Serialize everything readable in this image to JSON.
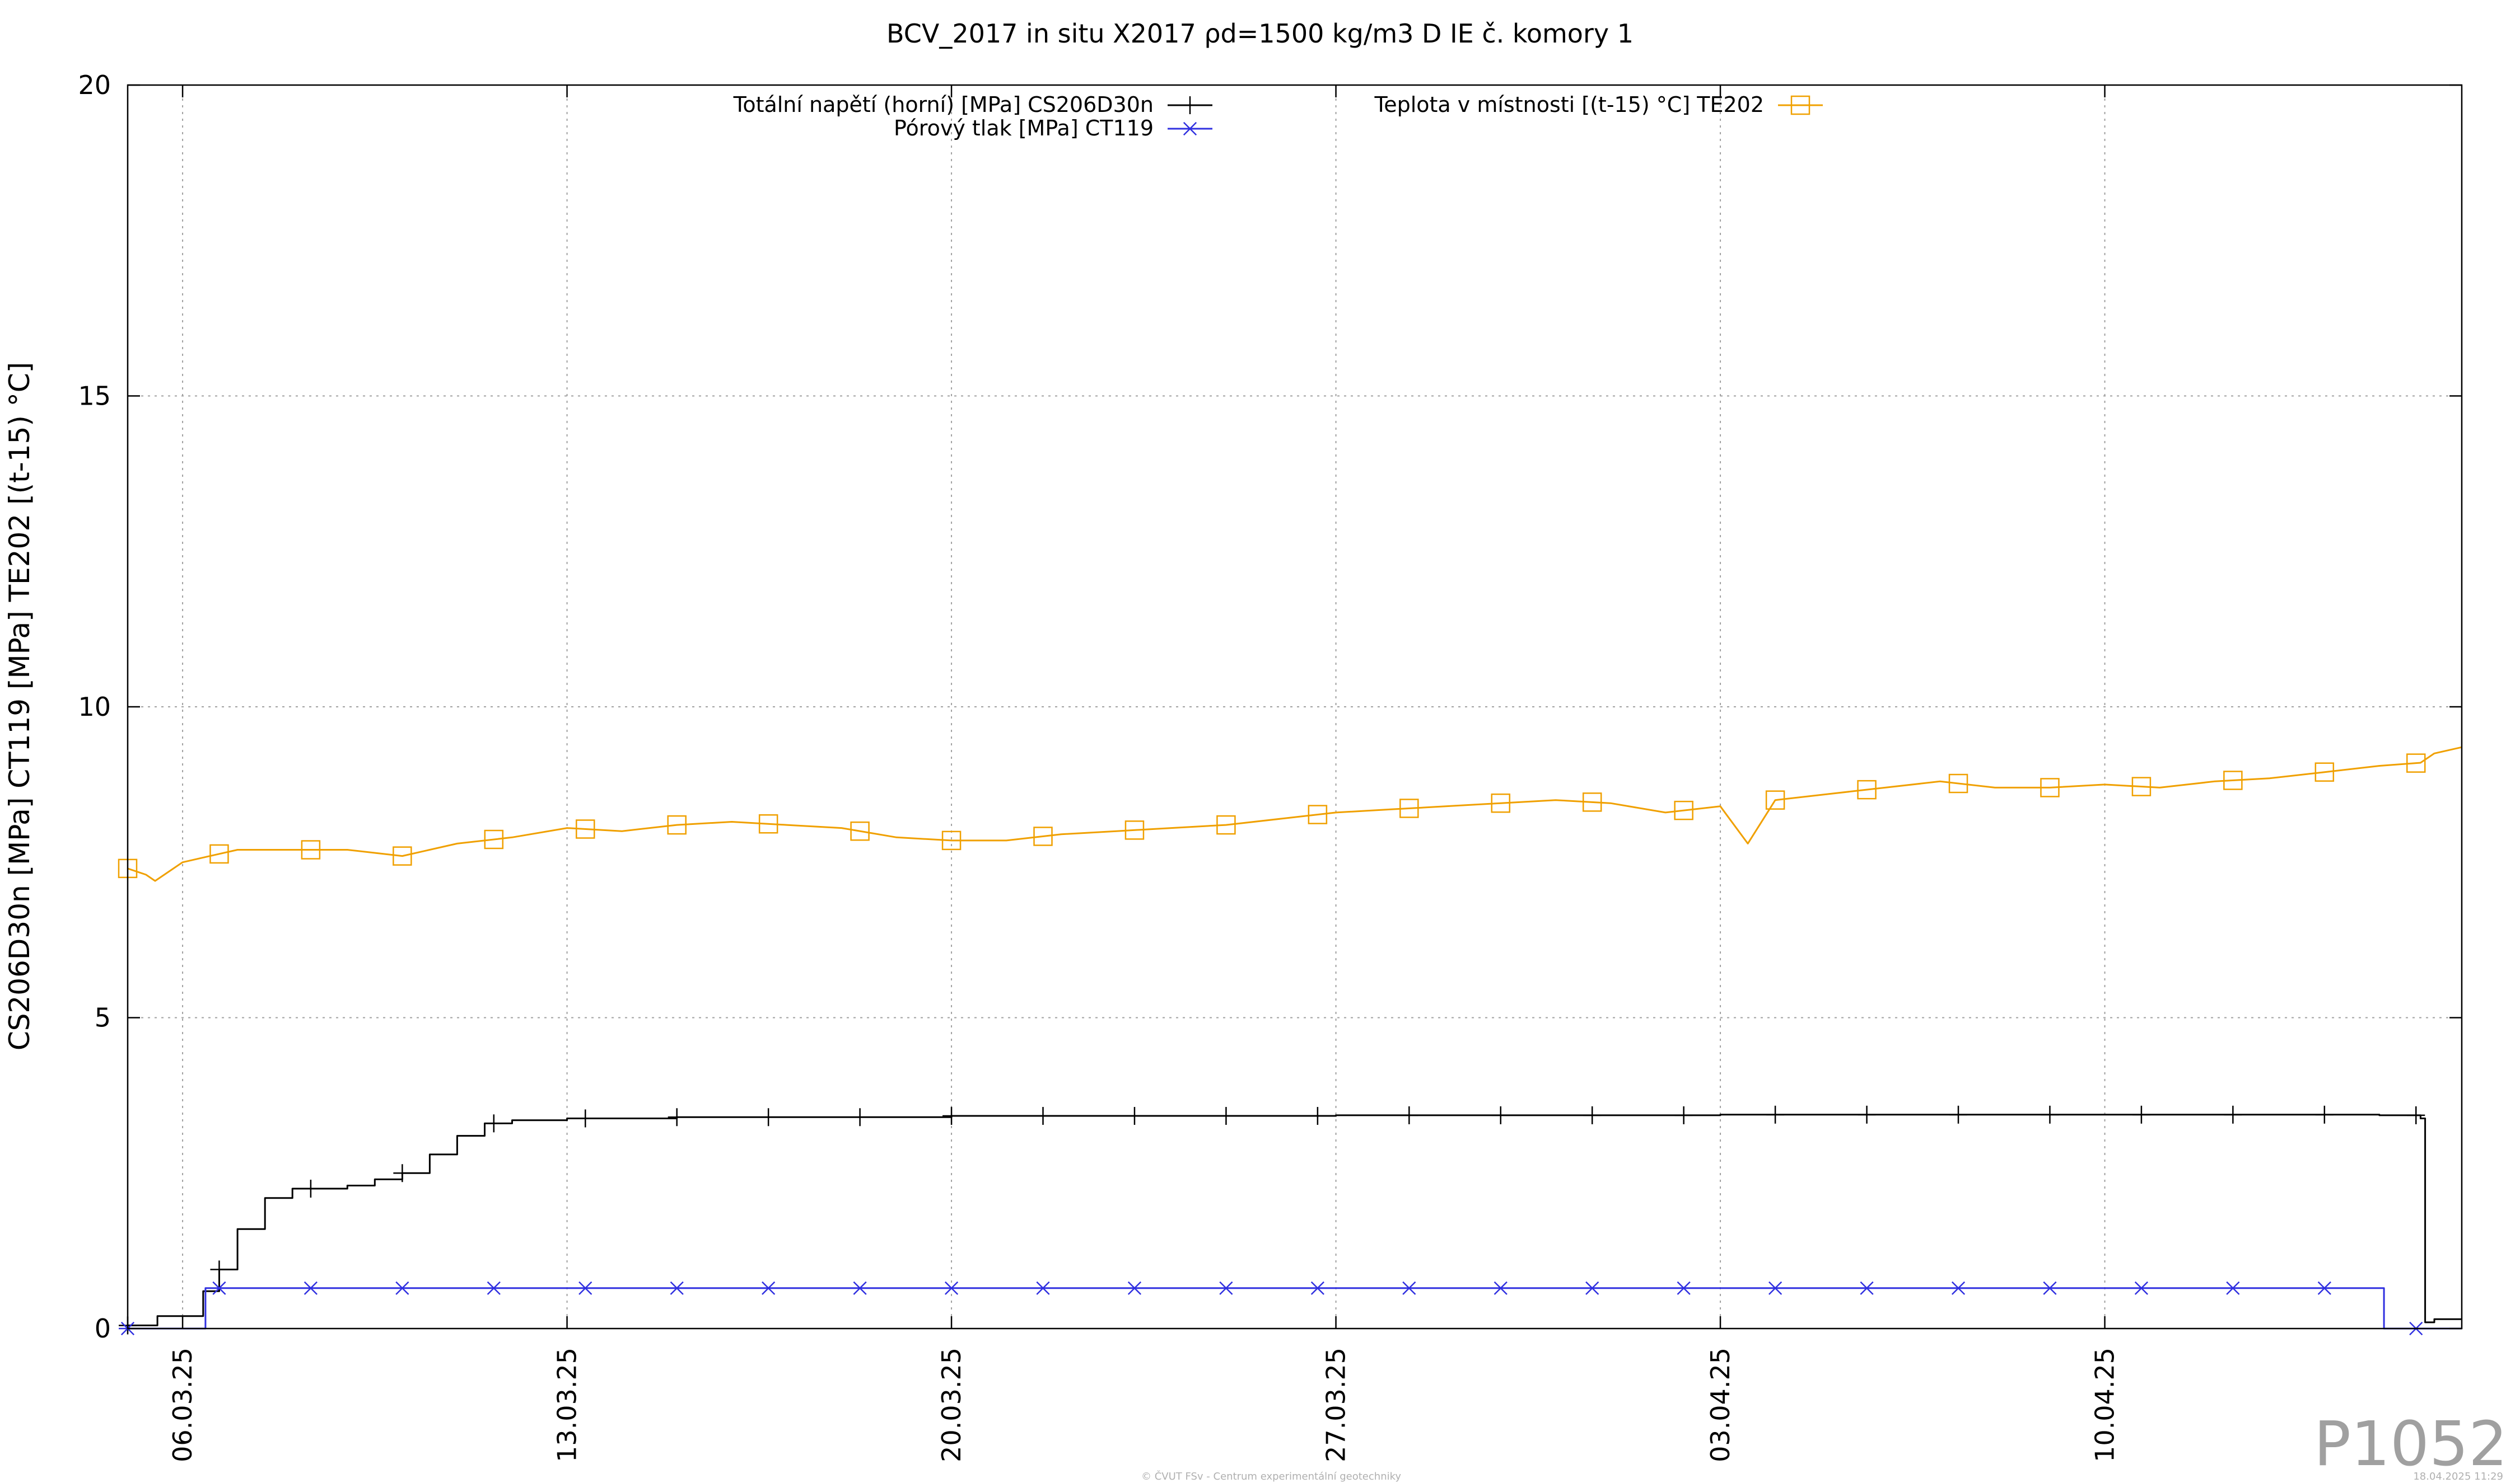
{
  "chart_data": {
    "type": "line",
    "title": "BCV_2017 in situ X2017 ρd=1500 kg/m3 D IE č. komory 1",
    "ylabel": "CS206D30n [MPa] CT119 [MPa] TE202 [(t-15) °C]",
    "xlabel": "",
    "ylim": [
      0,
      20
    ],
    "y_ticks": [
      "0",
      "5",
      "10",
      "15",
      "20"
    ],
    "x_range": [
      "2025-03-05 00:00",
      "2025-04-16 12:00"
    ],
    "x_ticks": [
      {
        "label": "06.03.25",
        "date": "2025-03-06"
      },
      {
        "label": "13.03.25",
        "date": "2025-03-13"
      },
      {
        "label": "20.03.25",
        "date": "2025-03-20"
      },
      {
        "label": "27.03.25",
        "date": "2025-03-27"
      },
      {
        "label": "03.04.25",
        "date": "2025-04-03"
      },
      {
        "label": "10.04.25",
        "date": "2025-04-10"
      }
    ],
    "grid": true,
    "legend_position": "top",
    "series": [
      {
        "name": "Totální napětí (horní) [MPa] CS206D30n",
        "color": "#000000",
        "marker": "plus",
        "step": true,
        "x": [
          "2025-03-05 00:00",
          "2025-03-05 12:00",
          "2025-03-05 13:00",
          "2025-03-06 08:00",
          "2025-03-06 09:00",
          "2025-03-06 16:00",
          "2025-03-07 00:00",
          "2025-03-07 12:00",
          "2025-03-08 00:00",
          "2025-03-08 12:00",
          "2025-03-09 00:00",
          "2025-03-09 12:00",
          "2025-03-10 00:00",
          "2025-03-10 12:00",
          "2025-03-11 00:00",
          "2025-03-11 12:00",
          "2025-03-12 00:00",
          "2025-03-13 00:00",
          "2025-03-15 00:00",
          "2025-03-20 00:00",
          "2025-03-27 00:00",
          "2025-04-03 00:00",
          "2025-04-10 00:00",
          "2025-04-15 00:00",
          "2025-04-15 18:00",
          "2025-04-15 20:00",
          "2025-04-16 00:00",
          "2025-04-16 12:00"
        ],
        "y": [
          0.05,
          0.05,
          0.2,
          0.2,
          0.6,
          0.95,
          1.6,
          2.1,
          2.25,
          2.25,
          2.3,
          2.4,
          2.5,
          2.8,
          3.1,
          3.3,
          3.35,
          3.38,
          3.4,
          3.42,
          3.43,
          3.44,
          3.44,
          3.43,
          3.38,
          0.1,
          0.15,
          0.15
        ]
      },
      {
        "name": "Pórový tlak [MPa] CT119",
        "color": "#3030e0",
        "marker": "asterisk",
        "step": true,
        "x": [
          "2025-03-05 00:00",
          "2025-03-06 09:00",
          "2025-03-06 10:00",
          "2025-04-15 01:00",
          "2025-04-15 02:00",
          "2025-04-16 12:00"
        ],
        "y": [
          0.0,
          0.0,
          0.65,
          0.65,
          0.0,
          0.0
        ]
      },
      {
        "name": "Teplota v místnosti [(t-15) °C] TE202",
        "color": "#f0a000",
        "marker": "square",
        "step": false,
        "x": [
          "2025-03-05 00:00",
          "2025-03-05 08:00",
          "2025-03-05 12:00",
          "2025-03-06 00:00",
          "2025-03-06 12:00",
          "2025-03-07 00:00",
          "2025-03-08 00:00",
          "2025-03-09 00:00",
          "2025-03-10 00:00",
          "2025-03-11 00:00",
          "2025-03-12 00:00",
          "2025-03-13 00:00",
          "2025-03-14 00:00",
          "2025-03-15 00:00",
          "2025-03-16 00:00",
          "2025-03-17 00:00",
          "2025-03-18 00:00",
          "2025-03-19 00:00",
          "2025-03-20 00:00",
          "2025-03-21 00:00",
          "2025-03-22 00:00",
          "2025-03-23 00:00",
          "2025-03-24 00:00",
          "2025-03-25 00:00",
          "2025-03-26 00:00",
          "2025-03-27 00:00",
          "2025-03-28 00:00",
          "2025-03-29 00:00",
          "2025-03-30 00:00",
          "2025-03-31 00:00",
          "2025-04-01 00:00",
          "2025-04-02 00:00",
          "2025-04-03 00:00",
          "2025-04-03 12:00",
          "2025-04-04 00:00",
          "2025-04-05 00:00",
          "2025-04-06 00:00",
          "2025-04-07 00:00",
          "2025-04-08 00:00",
          "2025-04-09 00:00",
          "2025-04-10 00:00",
          "2025-04-11 00:00",
          "2025-04-12 00:00",
          "2025-04-13 00:00",
          "2025-04-14 00:00",
          "2025-04-15 00:00",
          "2025-04-15 18:00",
          "2025-04-16 00:00",
          "2025-04-16 12:00"
        ],
        "y": [
          7.4,
          7.3,
          7.2,
          7.5,
          7.6,
          7.7,
          7.7,
          7.7,
          7.6,
          7.8,
          7.9,
          8.05,
          8.0,
          8.1,
          8.15,
          8.1,
          8.05,
          7.9,
          7.85,
          7.85,
          7.95,
          8.0,
          8.05,
          8.1,
          8.2,
          8.3,
          8.35,
          8.4,
          8.45,
          8.5,
          8.45,
          8.3,
          8.4,
          7.8,
          8.5,
          8.6,
          8.7,
          8.8,
          8.7,
          8.7,
          8.75,
          8.7,
          8.8,
          8.85,
          8.95,
          9.05,
          9.1,
          9.25,
          9.35
        ]
      }
    ]
  },
  "plot_id": "P1052",
  "footer_center": "© ČVUT FSv - Centrum experimentální geotechniky",
  "footer_right": "18.04.2025 11:29"
}
